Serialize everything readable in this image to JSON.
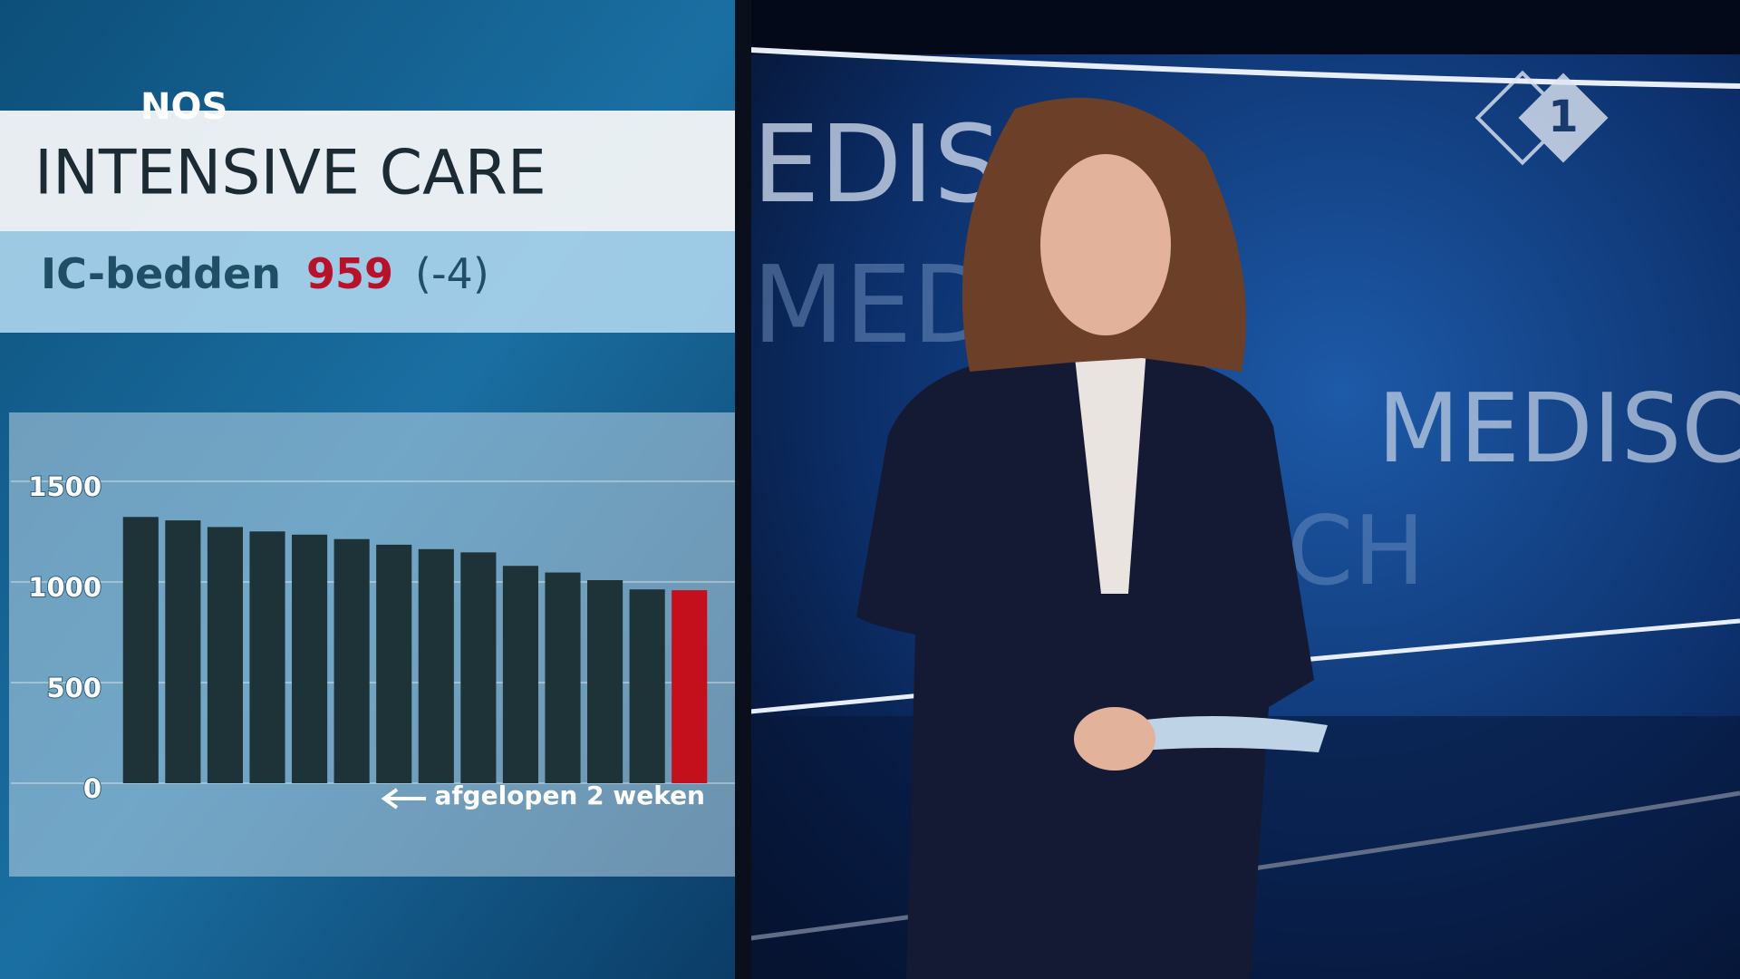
{
  "logo": "NOS",
  "channel_logo": "1",
  "background_text": [
    "EDISC",
    "MED",
    "MEDISC",
    "CH"
  ],
  "chart_data": {
    "type": "bar",
    "title": "INTENSIVE CARE",
    "subtitle": {
      "label": "IC-bedden",
      "value": "959",
      "change": "(-4)"
    },
    "annotation": "afgelopen 2 weken",
    "categories": [
      null,
      null,
      null,
      null,
      null,
      null,
      null,
      null,
      null,
      null,
      null,
      null,
      null,
      null
    ],
    "values": [
      1323,
      1306,
      1273,
      1251,
      1235,
      1213,
      1185,
      1163,
      1147,
      1080,
      1047,
      1009,
      963,
      959
    ],
    "colors": [
      "#1d3338",
      "#1d3338",
      "#1d3338",
      "#1d3338",
      "#1d3338",
      "#1d3338",
      "#1d3338",
      "#1d3338",
      "#1d3338",
      "#1d3338",
      "#1d3338",
      "#1d3338",
      "#1d3338",
      "#c3101c"
    ],
    "ylim": [
      0,
      1500
    ],
    "yticks": [
      0,
      500,
      1000,
      1500
    ],
    "grid": true
  }
}
